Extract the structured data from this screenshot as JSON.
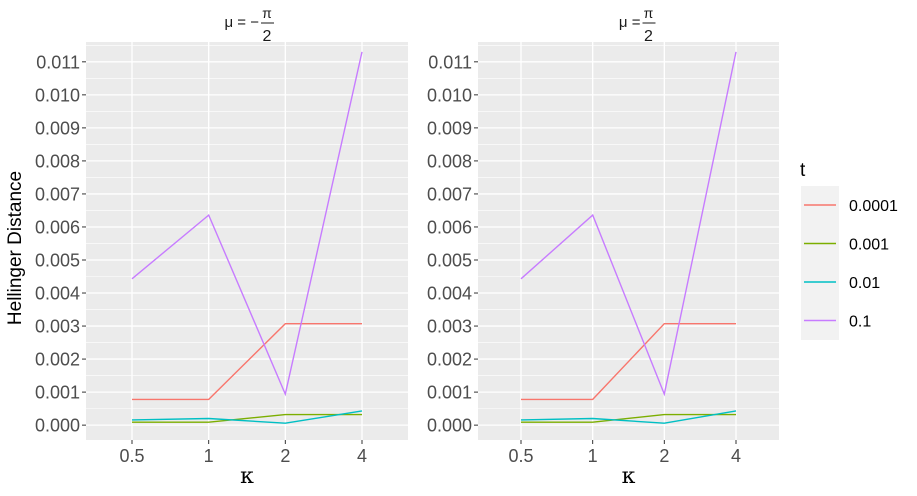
{
  "chart_data": {
    "type": "line",
    "ylabel": "Hellinger Distance",
    "xlabel": "κ",
    "categories": [
      "0.5",
      "1",
      "2",
      "4"
    ],
    "ylim": [
      -0.00045,
      0.0116
    ],
    "yticks": [
      "0.000",
      "0.001",
      "0.002",
      "0.003",
      "0.004",
      "0.005",
      "0.006",
      "0.007",
      "0.008",
      "0.009",
      "0.010",
      "0.011"
    ],
    "grid": true,
    "legend": {
      "title": "t",
      "placement": "right"
    },
    "facets": [
      {
        "title_prefix": "μ  =  −",
        "title_num": "π",
        "title_den": "2",
        "series": [
          {
            "name": "0.0001",
            "color": "#F8766D",
            "values": [
              0.00078,
              0.00078,
              0.00307,
              0.00307
            ]
          },
          {
            "name": "0.001",
            "color": "#7CAE00",
            "values": [
              9e-05,
              9e-05,
              0.00032,
              0.00032
            ]
          },
          {
            "name": "0.01",
            "color": "#00BFC4",
            "values": [
              0.00016,
              0.0002,
              6e-05,
              0.00043
            ]
          },
          {
            "name": "0.1",
            "color": "#C77CFF",
            "values": [
              0.00443,
              0.00636,
              0.00094,
              0.0113
            ]
          }
        ]
      },
      {
        "title_prefix": "μ  =  ",
        "title_num": "π",
        "title_den": "2",
        "series": [
          {
            "name": "0.0001",
            "color": "#F8766D",
            "values": [
              0.00078,
              0.00078,
              0.00307,
              0.00307
            ]
          },
          {
            "name": "0.001",
            "color": "#7CAE00",
            "values": [
              9e-05,
              9e-05,
              0.00032,
              0.00032
            ]
          },
          {
            "name": "0.01",
            "color": "#00BFC4",
            "values": [
              0.00016,
              0.0002,
              6e-05,
              0.00043
            ]
          },
          {
            "name": "0.1",
            "color": "#C77CFF",
            "values": [
              0.00443,
              0.00636,
              0.00094,
              0.0113
            ]
          }
        ]
      }
    ]
  }
}
